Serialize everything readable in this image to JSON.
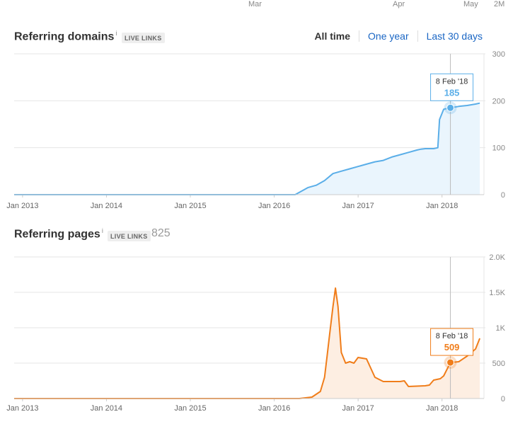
{
  "top_axis": {
    "ticks": [
      "Mar",
      "Apr",
      "May",
      "2M"
    ]
  },
  "referring_domains": {
    "title": "Referring domains",
    "info": "i",
    "badge": "LIVE LINKS",
    "tabs": [
      "All time",
      "One year",
      "Last 30 days"
    ],
    "active_tab": "All time",
    "color": "#5aaee8",
    "fill_color": "#eaf5fd",
    "tooltip": {
      "date": "8 Feb '18",
      "value": "185"
    }
  },
  "referring_pages": {
    "title": "Referring pages",
    "info": "i",
    "badge": "LIVE LINKS",
    "count": "825",
    "color": "#f07d1a",
    "fill_color": "#fdeee2",
    "tooltip": {
      "date": "8 Feb '18",
      "value": "509"
    }
  },
  "chart_data": [
    {
      "type": "area",
      "title": "Referring domains",
      "x_tick_labels": [
        "Jan 2013",
        "Jan 2014",
        "Jan 2015",
        "Jan 2016",
        "Jan 2017",
        "Jan 2018"
      ],
      "y_tick_labels": [
        "0",
        "100",
        "200",
        "300"
      ],
      "ylim": [
        0,
        300
      ],
      "xlim": [
        2012.9,
        2018.5
      ],
      "grid": true,
      "series": [
        {
          "x": [
            2012.9,
            2016.25,
            2016.4,
            2016.5,
            2016.6,
            2016.7,
            2016.8,
            2016.9,
            2017.0,
            2017.1,
            2017.2,
            2017.3,
            2017.4,
            2017.5,
            2017.6,
            2017.7,
            2017.75,
            2017.8,
            2017.9,
            2017.95,
            2017.97,
            2018.02,
            2018.1,
            2018.2,
            2018.3,
            2018.4,
            2018.45
          ],
          "y": [
            0,
            0,
            15,
            20,
            30,
            45,
            50,
            55,
            60,
            65,
            70,
            73,
            80,
            85,
            90,
            95,
            97,
            98,
            98,
            100,
            160,
            182,
            185,
            188,
            190,
            193,
            195
          ]
        }
      ],
      "annotations": [
        {
          "x": 2018.1,
          "y": 185,
          "label": "8 Feb '18"
        }
      ]
    },
    {
      "type": "area",
      "title": "Referring pages",
      "x_tick_labels": [
        "Jan 2013",
        "Jan 2014",
        "Jan 2015",
        "Jan 2016",
        "Jan 2017",
        "Jan 2018"
      ],
      "y_tick_labels": [
        "0",
        "500",
        "1K",
        "1.5K",
        "2.0K"
      ],
      "ylim": [
        0,
        2000
      ],
      "xlim": [
        2012.9,
        2018.5
      ],
      "grid": true,
      "series": [
        {
          "x": [
            2012.9,
            2016.3,
            2016.45,
            2016.55,
            2016.6,
            2016.63,
            2016.66,
            2016.7,
            2016.73,
            2016.76,
            2016.8,
            2016.85,
            2016.9,
            2016.95,
            2017.0,
            2017.1,
            2017.2,
            2017.3,
            2017.5,
            2017.55,
            2017.6,
            2017.8,
            2017.85,
            2017.9,
            2017.98,
            2018.02,
            2018.1,
            2018.2,
            2018.3,
            2018.4,
            2018.45
          ],
          "y": [
            0,
            0,
            20,
            100,
            300,
            600,
            900,
            1300,
            1560,
            1300,
            650,
            500,
            520,
            500,
            580,
            560,
            300,
            240,
            240,
            250,
            170,
            180,
            190,
            260,
            280,
            320,
            509,
            520,
            600,
            700,
            850
          ]
        }
      ],
      "annotations": [
        {
          "x": 2018.1,
          "y": 509,
          "label": "8 Feb '18"
        }
      ]
    }
  ]
}
